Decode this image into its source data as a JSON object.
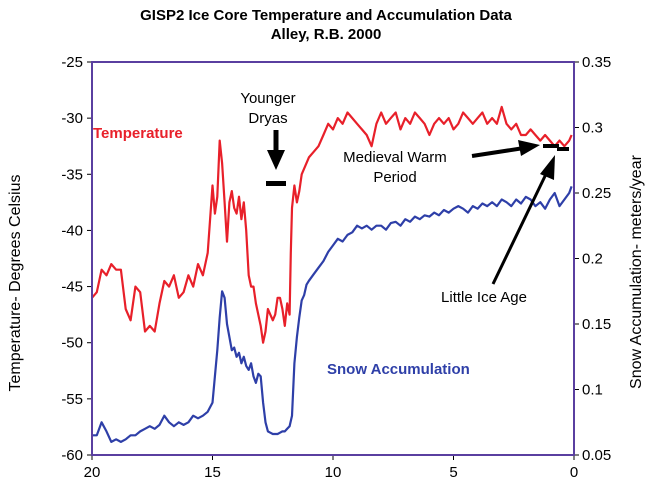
{
  "chart_data": {
    "type": "line",
    "title": "GISP2 Ice Core Temperature and Accumulation Data",
    "subtitle": "Alley, R.B. 2000",
    "xlabel": "",
    "xlim": [
      20,
      0
    ],
    "x_ticks": [
      "20",
      "15",
      "10",
      "5",
      "0"
    ],
    "y_left": {
      "label": "Temperature- Degrees Celsius",
      "lim": [
        -60,
        -25
      ],
      "ticks": [
        "-25",
        "-30",
        "-35",
        "-40",
        "-45",
        "-50",
        "-55",
        "-60"
      ]
    },
    "y_right": {
      "label": "Snow Accumulation- meters/year",
      "lim": [
        0.05,
        0.35
      ],
      "ticks": [
        "0.35",
        "0.3",
        "0.25",
        "0.2",
        "0.15",
        "0.1",
        "0.05"
      ]
    },
    "series": [
      {
        "name": "Temperature",
        "axis": "left",
        "color": "#e8202a",
        "x": [
          20,
          19.8,
          19.6,
          19.4,
          19.2,
          19.0,
          18.8,
          18.6,
          18.4,
          18.2,
          18.0,
          17.8,
          17.6,
          17.4,
          17.2,
          17.0,
          16.8,
          16.6,
          16.4,
          16.2,
          16.0,
          15.8,
          15.6,
          15.4,
          15.2,
          15.0,
          14.9,
          14.8,
          14.7,
          14.6,
          14.5,
          14.4,
          14.3,
          14.2,
          14.1,
          14.0,
          13.9,
          13.8,
          13.7,
          13.6,
          13.5,
          13.4,
          13.3,
          13.2,
          13.1,
          13.0,
          12.9,
          12.8,
          12.7,
          12.6,
          12.5,
          12.4,
          12.3,
          12.2,
          12.1,
          12.0,
          11.9,
          11.8,
          11.75,
          11.7,
          11.6,
          11.5,
          11.4,
          11.3,
          11.2,
          11.1,
          11.0,
          10.8,
          10.6,
          10.4,
          10.2,
          10.0,
          9.8,
          9.6,
          9.4,
          9.2,
          9.0,
          8.8,
          8.6,
          8.4,
          8.2,
          8.0,
          7.8,
          7.6,
          7.4,
          7.2,
          7.0,
          6.8,
          6.6,
          6.4,
          6.2,
          6.0,
          5.8,
          5.6,
          5.4,
          5.2,
          5.0,
          4.8,
          4.6,
          4.4,
          4.2,
          4.0,
          3.8,
          3.6,
          3.4,
          3.2,
          3.0,
          2.8,
          2.6,
          2.4,
          2.2,
          2.0,
          1.8,
          1.6,
          1.4,
          1.2,
          1.0,
          0.8,
          0.6,
          0.4,
          0.2,
          0.1
        ],
        "values": [
          -46,
          -45.5,
          -43.5,
          -44,
          -43,
          -43.5,
          -43.5,
          -47,
          -48,
          -45,
          -45.5,
          -49,
          -48.5,
          -49,
          -46.5,
          -44.5,
          -45,
          -44,
          -46,
          -45.5,
          -44,
          -45,
          -43,
          -44,
          -42,
          -36,
          -38.5,
          -37,
          -32,
          -34,
          -37.5,
          -41,
          -37.5,
          -36.5,
          -38,
          -38.5,
          -37,
          -39,
          -37.5,
          -40,
          -44,
          -45,
          -45,
          -46.5,
          -47.5,
          -48.5,
          -50,
          -49,
          -47,
          -47.5,
          -48,
          -47.5,
          -46,
          -46,
          -47,
          -48.5,
          -46.5,
          -47.5,
          -42,
          -38,
          -36,
          -37.5,
          -36.5,
          -35,
          -34.5,
          -34,
          -33.5,
          -33,
          -32.5,
          -31.5,
          -30.5,
          -31,
          -30,
          -30.5,
          -29.5,
          -30,
          -30.5,
          -31,
          -31.5,
          -32.5,
          -30.5,
          -29.5,
          -30.5,
          -30,
          -29.5,
          -31,
          -30,
          -30.5,
          -29.5,
          -30,
          -30.5,
          -31.5,
          -30.5,
          -30,
          -30.5,
          -30,
          -31,
          -30.5,
          -29.5,
          -30,
          -30.5,
          -30,
          -29.5,
          -30.5,
          -30,
          -30.5,
          -29,
          -30.5,
          -31,
          -30.5,
          -31.5,
          -31.5,
          -31,
          -31.5,
          -32,
          -31.5,
          -32,
          -32.5,
          -32,
          -32.5,
          -32,
          -31.5
        ]
      },
      {
        "name": "Snow Accumulation",
        "axis": "right",
        "color": "#2e3fa8",
        "x": [
          20,
          19.8,
          19.6,
          19.4,
          19.2,
          19.0,
          18.8,
          18.6,
          18.4,
          18.2,
          18.0,
          17.8,
          17.6,
          17.4,
          17.2,
          17.0,
          16.8,
          16.6,
          16.4,
          16.2,
          16.0,
          15.8,
          15.6,
          15.4,
          15.2,
          15.0,
          14.9,
          14.8,
          14.7,
          14.6,
          14.5,
          14.4,
          14.3,
          14.2,
          14.1,
          14.0,
          13.9,
          13.8,
          13.7,
          13.6,
          13.5,
          13.4,
          13.3,
          13.2,
          13.1,
          13.0,
          12.9,
          12.8,
          12.7,
          12.6,
          12.5,
          12.4,
          12.3,
          12.2,
          12.1,
          12.0,
          11.9,
          11.8,
          11.7,
          11.6,
          11.5,
          11.4,
          11.3,
          11.2,
          11.1,
          11.0,
          10.8,
          10.6,
          10.4,
          10.2,
          10.0,
          9.8,
          9.6,
          9.4,
          9.2,
          9.0,
          8.8,
          8.6,
          8.4,
          8.2,
          8.0,
          7.8,
          7.6,
          7.4,
          7.2,
          7.0,
          6.8,
          6.6,
          6.4,
          6.2,
          6.0,
          5.8,
          5.6,
          5.4,
          5.2,
          5.0,
          4.8,
          4.6,
          4.4,
          4.2,
          4.0,
          3.8,
          3.6,
          3.4,
          3.2,
          3.0,
          2.8,
          2.6,
          2.4,
          2.2,
          2.0,
          1.8,
          1.6,
          1.4,
          1.2,
          1.0,
          0.8,
          0.6,
          0.4,
          0.2,
          0.1
        ],
        "values": [
          0.065,
          0.065,
          0.075,
          0.068,
          0.06,
          0.062,
          0.06,
          0.062,
          0.065,
          0.065,
          0.068,
          0.07,
          0.072,
          0.07,
          0.073,
          0.08,
          0.075,
          0.072,
          0.075,
          0.073,
          0.075,
          0.08,
          0.078,
          0.08,
          0.083,
          0.09,
          0.11,
          0.13,
          0.155,
          0.175,
          0.17,
          0.15,
          0.14,
          0.13,
          0.132,
          0.125,
          0.128,
          0.12,
          0.125,
          0.118,
          0.115,
          0.12,
          0.11,
          0.105,
          0.112,
          0.11,
          0.09,
          0.075,
          0.068,
          0.067,
          0.066,
          0.066,
          0.066,
          0.067,
          0.068,
          0.068,
          0.07,
          0.072,
          0.08,
          0.12,
          0.14,
          0.155,
          0.168,
          0.172,
          0.18,
          0.183,
          0.188,
          0.193,
          0.198,
          0.205,
          0.21,
          0.215,
          0.213,
          0.218,
          0.22,
          0.225,
          0.223,
          0.225,
          0.222,
          0.225,
          0.225,
          0.222,
          0.227,
          0.228,
          0.225,
          0.23,
          0.228,
          0.232,
          0.23,
          0.233,
          0.232,
          0.235,
          0.233,
          0.237,
          0.235,
          0.238,
          0.24,
          0.238,
          0.235,
          0.24,
          0.238,
          0.242,
          0.24,
          0.243,
          0.24,
          0.245,
          0.243,
          0.24,
          0.245,
          0.242,
          0.247,
          0.245,
          0.24,
          0.243,
          0.238,
          0.245,
          0.25,
          0.24,
          0.245,
          0.25,
          0.255
        ]
      }
    ],
    "annotations": [
      {
        "id": "younger-dryas",
        "lines": [
          "Younger",
          "Dryas"
        ],
        "target_x": 12.6,
        "target_y": -36
      },
      {
        "id": "medieval-warm-period",
        "lines": [
          "Medieval Warm",
          "Period"
        ],
        "target_x": 1.2,
        "target_y": -31.5
      },
      {
        "id": "little-ice-age",
        "lines": [
          "Little Ice Age"
        ],
        "target_x": 0.6,
        "target_y": -32.5
      }
    ],
    "series_labels": {
      "temperature": "Temperature",
      "accumulation": "Snow Accumulation"
    },
    "colors": {
      "temperature": "#e8202a",
      "accumulation": "#2e3fa8",
      "plot_frame": "#5a3fa0",
      "annotation": "#000000"
    }
  }
}
